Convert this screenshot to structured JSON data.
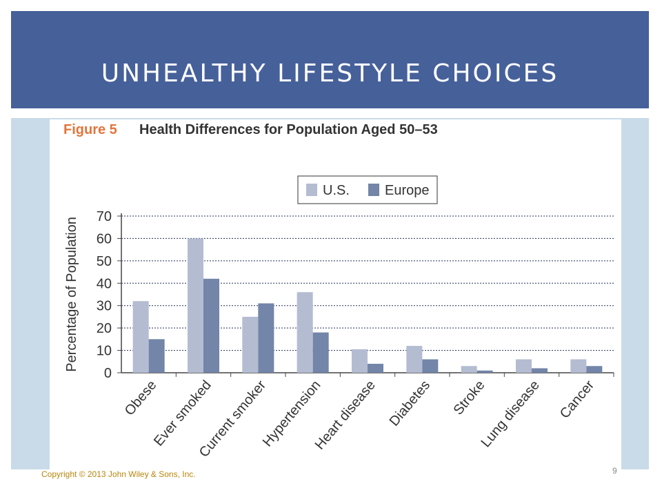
{
  "slide": {
    "title": "UNHEALTHY LIFESTYLE CHOICES",
    "copyright": "Copyright © 2013 John Wiley & Sons, Inc.",
    "page_number": "9"
  },
  "colors": {
    "header_bg": "#46609a",
    "panel_bg": "#c9dbe8",
    "us": "#b4bcd2",
    "europe": "#7385a8",
    "figure_label": "#e2753a"
  },
  "chart_data": {
    "type": "bar",
    "figure_label": "Figure 5",
    "title": "Health Differences for Population Aged 50–53",
    "ylabel": "Percentage of Population",
    "xlabel": "",
    "ylim": [
      0,
      70
    ],
    "yticks": [
      0,
      10,
      20,
      30,
      40,
      50,
      60,
      70
    ],
    "grid": true,
    "legend_position": "top-center",
    "categories": [
      "Obese",
      "Ever smoked",
      "Current smoker",
      "Hypertension",
      "Heart disease",
      "Diabetes",
      "Stroke",
      "Lung disease",
      "Cancer"
    ],
    "series": [
      {
        "name": "U.S.",
        "values": [
          32,
          60,
          25,
          36,
          10.5,
          12,
          3,
          6,
          6
        ]
      },
      {
        "name": "Europe",
        "values": [
          15,
          42,
          31,
          18,
          4,
          6,
          1,
          2,
          3
        ]
      }
    ]
  }
}
